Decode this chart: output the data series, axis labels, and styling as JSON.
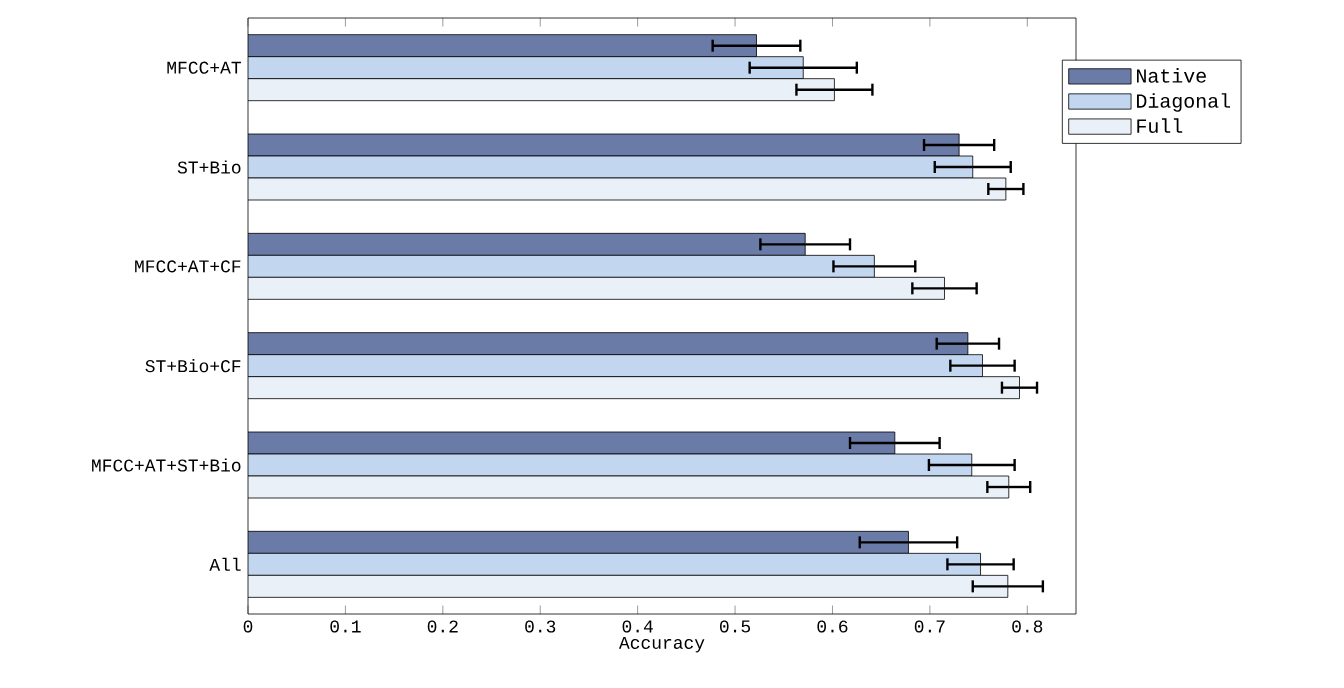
{
  "chart_data": {
    "type": "bar",
    "orientation": "horizontal",
    "xlabel": "Accuracy",
    "categories": [
      "MFCC+AT",
      "ST+Bio",
      "MFCC+AT+CF",
      "ST+Bio+CF",
      "MFCC+AT+ST+Bio",
      "All"
    ],
    "series": [
      {
        "name": "Native",
        "color": "#6a7ba8",
        "values": [
          0.522,
          0.73,
          0.572,
          0.739,
          0.664,
          0.678
        ],
        "errors": [
          0.045,
          0.036,
          0.046,
          0.032,
          0.046,
          0.05
        ]
      },
      {
        "name": "Diagonal",
        "color": "#c2d6f0",
        "values": [
          0.57,
          0.744,
          0.643,
          0.754,
          0.743,
          0.752
        ],
        "errors": [
          0.055,
          0.039,
          0.042,
          0.033,
          0.044,
          0.034
        ]
      },
      {
        "name": "Full",
        "color": "#eaf0f8",
        "values": [
          0.602,
          0.778,
          0.715,
          0.792,
          0.781,
          0.78
        ],
        "errors": [
          0.039,
          0.018,
          0.033,
          0.018,
          0.022,
          0.036
        ]
      }
    ],
    "xlim": [
      0,
      0.85
    ],
    "xticks": [
      0,
      0.1,
      0.2,
      0.3,
      0.4,
      0.5,
      0.6,
      0.7,
      0.8
    ],
    "legend": "top right"
  }
}
